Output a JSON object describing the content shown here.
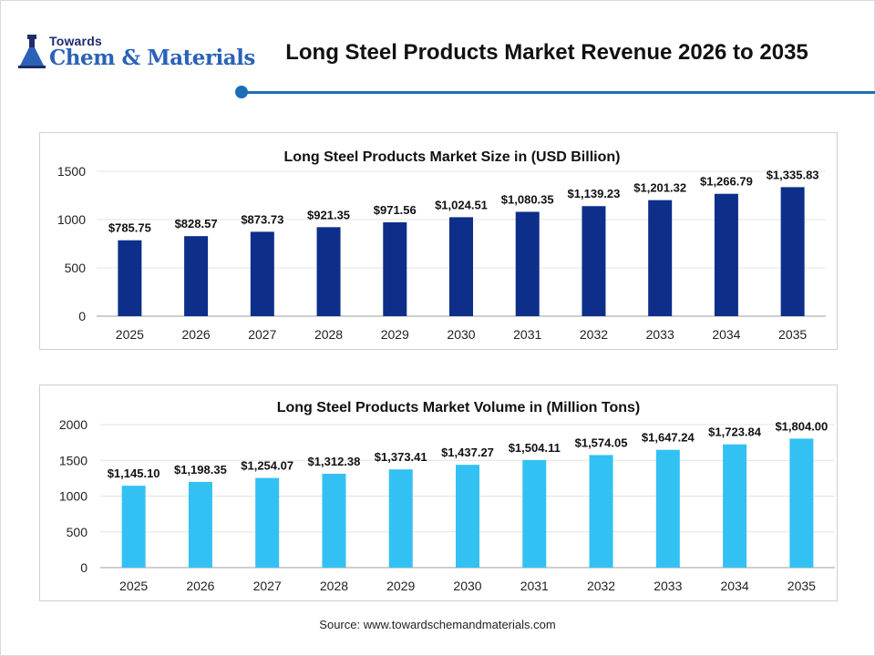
{
  "header": {
    "logo_small": "Towards",
    "logo_big": "Chem & Materials",
    "title": "Long Steel Products Market Revenue 2026 to 2035"
  },
  "chart_data": [
    {
      "type": "bar",
      "title": "Long Steel Products Market Size in (USD Billion)",
      "categories": [
        "2025",
        "2026",
        "2027",
        "2028",
        "2029",
        "2030",
        "2031",
        "2032",
        "2033",
        "2034",
        "2035"
      ],
      "values": [
        785.75,
        828.57,
        873.73,
        921.35,
        971.56,
        1024.51,
        1080.35,
        1139.23,
        1201.32,
        1266.79,
        1335.83
      ],
      "labels": [
        "$785.75",
        "$828.57",
        "$873.73",
        "$921.35",
        "$971.56",
        "$1,024.51",
        "$1,080.35",
        "$1,139.23",
        "$1,201.32",
        "$1,266.79",
        "$1,335.83"
      ],
      "ylim": [
        0,
        1500
      ],
      "yticks": [
        0,
        500,
        1000,
        1500
      ],
      "grid": true,
      "bar_color": "#0d2f8a"
    },
    {
      "type": "bar",
      "title": "Long Steel Products Market Volume in (Million Tons)",
      "categories": [
        "2025",
        "2026",
        "2027",
        "2028",
        "2029",
        "2030",
        "2031",
        "2032",
        "2033",
        "2034",
        "2035"
      ],
      "values": [
        1145.1,
        1198.35,
        1254.07,
        1312.38,
        1373.41,
        1437.27,
        1504.11,
        1574.05,
        1647.24,
        1723.84,
        1804.0
      ],
      "labels": [
        "$1,145.10",
        "$1,198.35",
        "$1,254.07",
        "$1,312.38",
        "$1,373.41",
        "$1,437.27",
        "$1,504.11",
        "$1,574.05",
        "$1,647.24",
        "$1,723.84",
        "$1,804.00"
      ],
      "ylim": [
        0,
        2000
      ],
      "yticks": [
        0,
        500,
        1000,
        1500,
        2000
      ],
      "grid": true,
      "bar_color": "#33c1f3"
    }
  ],
  "footer": {
    "source": "Source: www.towardschemandmaterials.com"
  }
}
